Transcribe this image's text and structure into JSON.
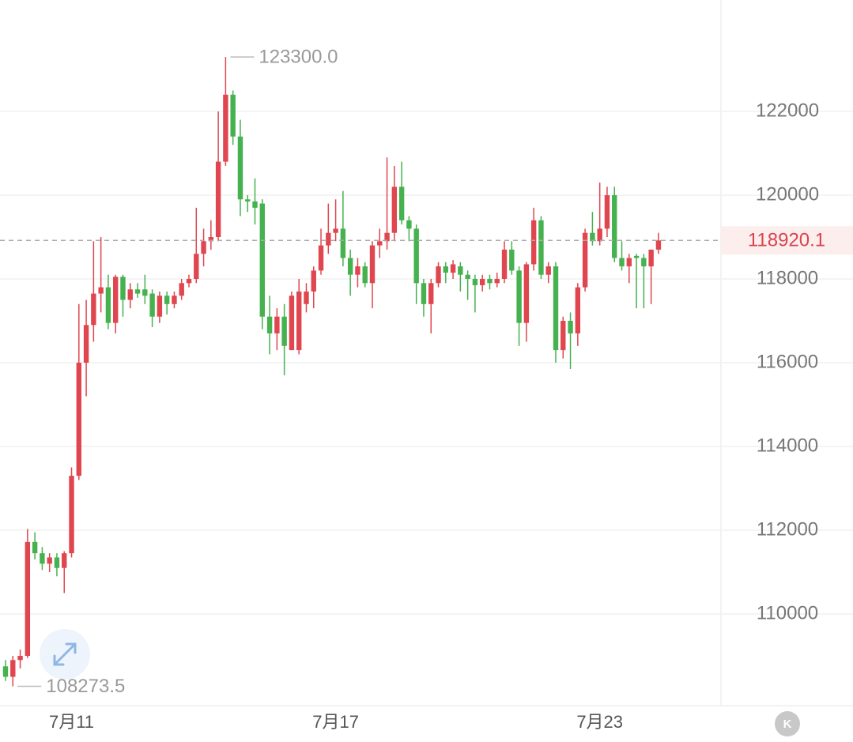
{
  "chart_data": {
    "type": "candlestick",
    "categories": [
      null,
      null,
      null,
      null,
      null,
      null,
      null,
      null,
      null,
      "7月11",
      null,
      null,
      null,
      null,
      null,
      null,
      null,
      null,
      null,
      null,
      null,
      null,
      null,
      null,
      null,
      null,
      null,
      null,
      null,
      null,
      null,
      null,
      null,
      null,
      null,
      null,
      null,
      null,
      null,
      null,
      null,
      null,
      null,
      null,
      null,
      "7月17",
      null,
      null,
      null,
      null,
      null,
      null,
      null,
      null,
      null,
      null,
      null,
      null,
      null,
      null,
      null,
      null,
      null,
      null,
      null,
      null,
      null,
      null,
      null,
      null,
      null,
      null,
      null,
      null,
      null,
      null,
      null,
      null,
      null,
      null,
      null,
      "7月23",
      null,
      null,
      null,
      null,
      null,
      null,
      null,
      null
    ],
    "open": [
      108750,
      108500,
      108900,
      109000,
      111720,
      111450,
      111200,
      111350,
      111100,
      111450,
      113300,
      116000,
      116900,
      117650,
      117800,
      116950,
      118050,
      117500,
      117750,
      117750,
      117650,
      117100,
      117600,
      117400,
      117600,
      117900,
      118000,
      118600,
      118900,
      119000,
      120800,
      122400,
      121400,
      119900,
      119850,
      119800,
      117100,
      116700,
      117100,
      116300,
      116300,
      117400,
      117700,
      118200,
      118800,
      119100,
      119200,
      118500,
      118100,
      118300,
      117900,
      118800,
      118900,
      119100,
      120200,
      119400,
      119200,
      117900,
      117400,
      117900,
      118300,
      118150,
      118300,
      118100,
      118000,
      117850,
      118000,
      117900,
      118000,
      118700,
      118200,
      116950,
      118350,
      119400,
      118100,
      118300,
      116300,
      117000,
      116700,
      117800,
      119100,
      118900,
      119200,
      120000,
      118500,
      118300,
      118550,
      118500,
      118300,
      118700
    ],
    "high": [
      108900,
      109000,
      109150,
      112030,
      111950,
      111600,
      111450,
      111450,
      111500,
      113500,
      117400,
      117500,
      118900,
      119000,
      118100,
      118100,
      118100,
      117900,
      117900,
      118100,
      117750,
      117700,
      117700,
      117700,
      118000,
      118100,
      119700,
      119200,
      119400,
      122000,
      123300,
      122500,
      121800,
      120000,
      120400,
      119900,
      117600,
      117300,
      117400,
      117700,
      118000,
      117900,
      118300,
      119200,
      119800,
      119900,
      120100,
      118700,
      118500,
      118400,
      118900,
      119200,
      120900,
      120700,
      120800,
      119500,
      119300,
      118000,
      118000,
      118400,
      118400,
      118450,
      118400,
      118200,
      118100,
      118100,
      118100,
      118150,
      118900,
      118900,
      118300,
      118400,
      119700,
      119500,
      118400,
      118400,
      117100,
      117200,
      117900,
      119200,
      119600,
      120300,
      120200,
      120200,
      118900,
      118600,
      118600,
      118600,
      118700,
      119100
    ],
    "low": [
      108400,
      108273.5,
      108700,
      108950,
      111300,
      111050,
      111000,
      110900,
      110500,
      111350,
      113200,
      115200,
      116500,
      117200,
      116800,
      116700,
      117100,
      117300,
      117550,
      117400,
      116850,
      116950,
      117150,
      117300,
      117500,
      117800,
      117900,
      118300,
      118700,
      118900,
      120700,
      121200,
      119500,
      119600,
      119300,
      116800,
      116200,
      116300,
      115700,
      116300,
      116200,
      117200,
      117300,
      118100,
      118600,
      118900,
      118300,
      117600,
      117800,
      117800,
      117300,
      118500,
      118700,
      118900,
      119300,
      118900,
      117400,
      117100,
      116700,
      117800,
      117900,
      118000,
      117700,
      117500,
      117200,
      117700,
      117750,
      117800,
      117900,
      118100,
      116400,
      116500,
      118200,
      118000,
      117900,
      116000,
      116100,
      115850,
      116400,
      117700,
      118800,
      118800,
      119000,
      118400,
      118200,
      117900,
      117300,
      117300,
      117400,
      118600
    ],
    "close": [
      108500,
      108900,
      109000,
      111720,
      111450,
      111200,
      111350,
      111100,
      111450,
      113300,
      116000,
      116900,
      117650,
      117800,
      116950,
      118050,
      117500,
      117750,
      117650,
      117600,
      117100,
      117600,
      117400,
      117600,
      117900,
      118000,
      118600,
      118900,
      119000,
      120800,
      122400,
      121400,
      119900,
      119850,
      119700,
      117100,
      116700,
      117100,
      116400,
      117600,
      117700,
      117700,
      118200,
      118800,
      119100,
      119200,
      118500,
      118100,
      118300,
      117900,
      118800,
      118900,
      119100,
      120200,
      119400,
      119200,
      117900,
      117400,
      117900,
      118300,
      118150,
      118350,
      118100,
      118000,
      117850,
      118000,
      117900,
      118000,
      118700,
      118200,
      116950,
      118350,
      119400,
      118100,
      118300,
      116300,
      117000,
      116700,
      117800,
      119100,
      118900,
      119200,
      120000,
      118500,
      118300,
      118500,
      118500,
      118300,
      118700,
      118920.1
    ],
    "up_color": "#e0464f",
    "down_color": "#46b14f",
    "ylim": [
      107868,
      124660
    ],
    "yticks": [
      110000,
      112000,
      114000,
      116000,
      118000,
      120000,
      122000
    ],
    "grid": true,
    "high_annotation": {
      "value": 123300,
      "label": "123300.0"
    },
    "low_annotation": {
      "value": 108273.5,
      "label": "108273.5"
    },
    "last_price": 118920.1
  }
}
